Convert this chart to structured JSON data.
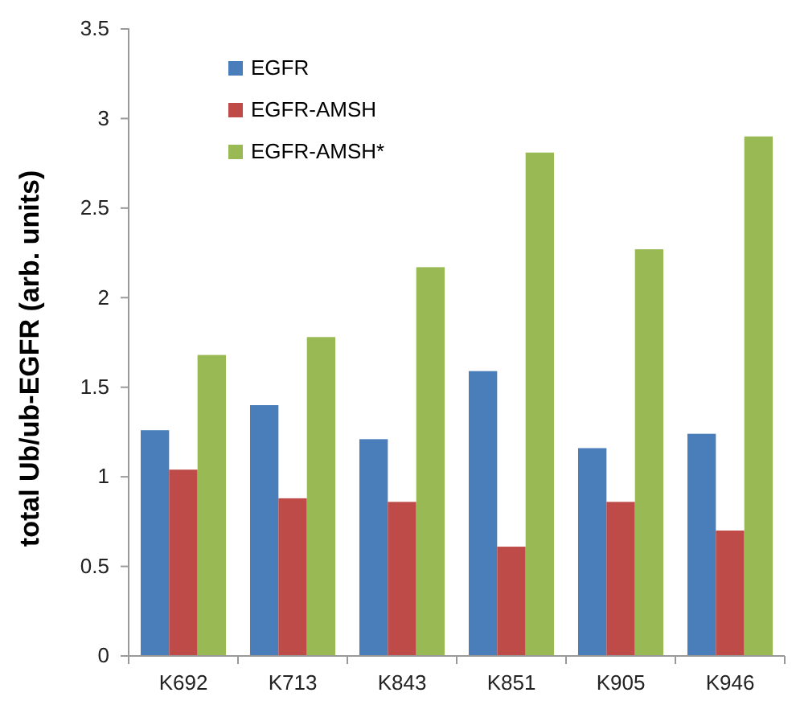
{
  "chart_data": {
    "type": "bar",
    "ylabel": "total Ub/ub-EGFR (arb. units)",
    "categories": [
      "K692",
      "K713",
      "K843",
      "K851",
      "K905",
      "K946"
    ],
    "series": [
      {
        "name": "EGFR",
        "color": "#4a7ebb",
        "values": [
          1.26,
          1.4,
          1.21,
          1.59,
          1.16,
          1.24
        ]
      },
      {
        "name": "EGFR-AMSH",
        "color": "#be4b48",
        "values": [
          1.04,
          0.88,
          0.86,
          0.61,
          0.86,
          0.7
        ]
      },
      {
        "name": "EGFR-AMSH*",
        "color": "#98b954",
        "values": [
          1.68,
          1.78,
          2.17,
          2.81,
          2.27,
          2.9
        ]
      }
    ],
    "ylim": [
      0,
      3.5
    ],
    "yticks": [
      0,
      0.5,
      1,
      1.5,
      2,
      2.5,
      3,
      3.5
    ],
    "grid": false,
    "legend": "top left"
  }
}
